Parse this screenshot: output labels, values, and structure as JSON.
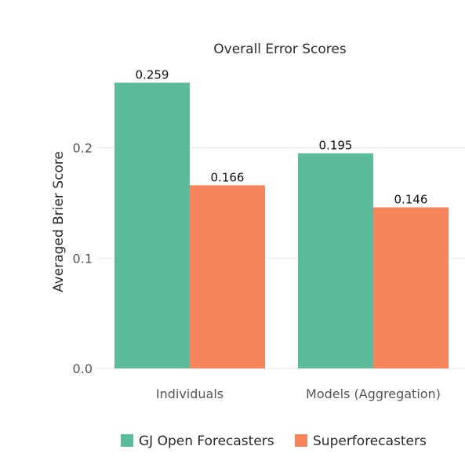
{
  "chart_data": {
    "type": "bar",
    "title": "Overall Error Scores",
    "xlabel": "",
    "ylabel": "Averaged Brier Score",
    "ylim": [
      0,
      0.27
    ],
    "yticks": [
      "0.0",
      "0.1",
      "0.2"
    ],
    "categories": [
      "Individuals",
      "Models (Aggregation)"
    ],
    "series": [
      {
        "name": "GJ Open Forecasters",
        "values": [
          0.259,
          0.195
        ],
        "labels": [
          "0.259",
          "0.195"
        ],
        "color": "#5cbb9a"
      },
      {
        "name": "Superforecasters",
        "values": [
          0.166,
          0.146
        ],
        "labels": [
          "0.166",
          "0.146"
        ],
        "color": "#f8845c"
      }
    ],
    "grid": true,
    "legend": "bottom"
  }
}
